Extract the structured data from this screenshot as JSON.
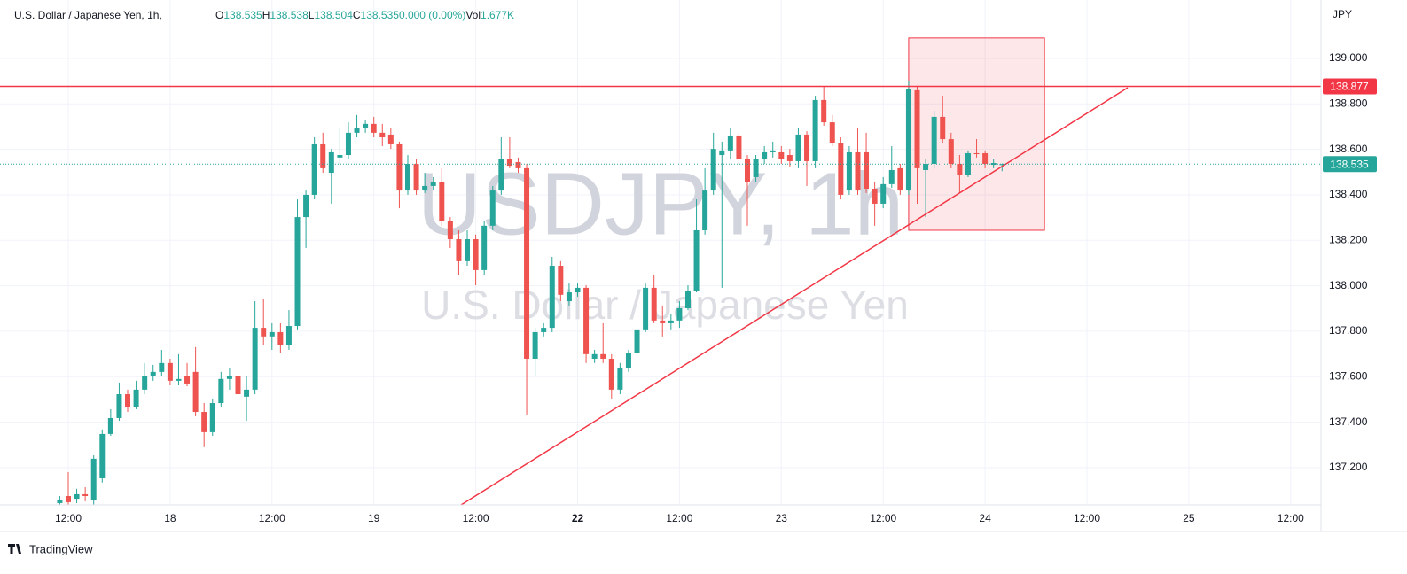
{
  "chart_data": {
    "type": "candlestick",
    "title": "U.S. Dollar / Japanese Yen, 1h,",
    "legend_items": [
      {
        "key": "O",
        "value": "138.535"
      },
      {
        "key": "H",
        "value": "138.538"
      },
      {
        "key": "L",
        "value": "138.504"
      },
      {
        "key": "C",
        "value": "138.535"
      },
      {
        "key": "",
        "value": "0.000 (0.00%)"
      },
      {
        "key": "Vol",
        "value": "1.677K"
      }
    ],
    "watermark": {
      "symbol": "USDJPY, 1h",
      "description": "U.S. Dollar / Japanese Yen"
    },
    "currency": "JPY",
    "brand": "TradingView",
    "up_color": "#26a69a",
    "down_color": "#ef5350",
    "grid": true,
    "xlim": [
      3.96,
      159.57
    ],
    "ylim": [
      137.036,
      139.257
    ],
    "xticks": [
      {
        "value": 12,
        "label": "12:00"
      },
      {
        "value": 24,
        "label": "18"
      },
      {
        "value": 36,
        "label": "12:00"
      },
      {
        "value": 48,
        "label": "19"
      },
      {
        "value": 60,
        "label": "12:00"
      },
      {
        "value": 72,
        "label": "22"
      },
      {
        "value": 84,
        "label": "12:00"
      },
      {
        "value": 96,
        "label": "23"
      },
      {
        "value": 108,
        "label": "12:00"
      },
      {
        "value": 120,
        "label": "24"
      },
      {
        "value": 132,
        "label": "12:00"
      },
      {
        "value": 144,
        "label": "25"
      },
      {
        "value": 156,
        "label": "12:00"
      }
    ],
    "yticks": [
      {
        "value": 137.2,
        "label": "137.200"
      },
      {
        "value": 137.4,
        "label": "137.400"
      },
      {
        "value": 137.6,
        "label": "137.600"
      },
      {
        "value": 137.8,
        "label": "137.800"
      },
      {
        "value": 138.0,
        "label": "138.000"
      },
      {
        "value": 138.2,
        "label": "138.200"
      },
      {
        "value": 138.4,
        "label": "138.400"
      },
      {
        "value": 138.6,
        "label": "138.600"
      },
      {
        "value": 138.8,
        "label": "138.800"
      },
      {
        "value": 139.0,
        "label": "139.000"
      }
    ],
    "x": [
      11,
      12,
      13,
      14,
      15,
      16,
      17,
      18,
      19,
      20,
      21,
      22,
      23,
      24,
      25,
      26,
      27,
      28,
      29,
      30,
      31,
      32,
      33,
      34,
      35,
      36,
      37,
      38,
      39,
      40,
      41,
      42,
      43,
      44,
      45,
      46,
      47,
      48,
      49,
      50,
      51,
      52,
      53,
      54,
      55,
      56,
      57,
      58,
      59,
      60,
      61,
      62,
      63,
      64,
      65,
      66,
      67,
      68,
      69,
      70,
      71,
      72,
      73,
      74,
      75,
      76,
      77,
      78,
      79,
      80,
      81,
      82,
      83,
      84,
      85,
      86,
      87,
      88,
      89,
      90,
      91,
      92,
      93,
      94,
      95,
      96,
      97,
      98,
      99,
      100,
      101,
      102,
      103,
      104,
      105,
      106,
      107,
      108,
      109,
      110,
      111,
      112,
      113,
      114,
      115,
      116,
      117,
      118,
      119,
      120,
      121,
      122
    ],
    "open": [
      137.044,
      137.075,
      137.063,
      137.083,
      137.056,
      137.153,
      137.348,
      137.418,
      137.523,
      137.465,
      137.543,
      137.601,
      137.621,
      137.66,
      137.582,
      137.601,
      137.621,
      137.445,
      137.356,
      137.484,
      137.59,
      137.601,
      137.512,
      137.543,
      137.815,
      137.777,
      137.796,
      137.738,
      137.823,
      138.302,
      138.4,
      138.622,
      138.497,
      138.564,
      138.575,
      138.673,
      138.692,
      138.712,
      138.673,
      138.665,
      138.622,
      138.419,
      138.536,
      138.419,
      138.439,
      138.458,
      138.283,
      138.205,
      138.108,
      138.205,
      138.069,
      138.264,
      138.419,
      138.556,
      138.544,
      138.517,
      137.679,
      137.796,
      137.815,
      138.088,
      137.932,
      137.971,
      137.991,
      137.679,
      137.699,
      137.679,
      137.543,
      137.64,
      137.706,
      137.808,
      137.991,
      137.847,
      137.835,
      137.847,
      137.901,
      137.979,
      138.244,
      138.419,
      138.575,
      138.595,
      138.661,
      138.556,
      138.478,
      138.556,
      138.587,
      138.587,
      138.575,
      138.548,
      138.665,
      138.548,
      138.817,
      138.719,
      138.626,
      138.419,
      138.587,
      138.587,
      138.427,
      138.361,
      138.447,
      138.517,
      138.419,
      138.86,
      138.509,
      138.536,
      138.743,
      138.645,
      138.536,
      138.489,
      138.583,
      138.583,
      138.532,
      138.535
    ],
    "high": [
      137.075,
      137.18,
      137.107,
      137.114,
      137.254,
      137.368,
      137.457,
      137.574,
      137.543,
      137.582,
      137.66,
      137.652,
      137.718,
      137.679,
      137.699,
      137.66,
      137.73,
      137.484,
      137.504,
      137.621,
      137.64,
      137.73,
      137.601,
      137.932,
      137.94,
      137.835,
      137.835,
      137.893,
      138.38,
      138.419,
      138.653,
      138.673,
      138.602,
      138.692,
      138.719,
      138.751,
      138.731,
      138.743,
      138.712,
      138.692,
      138.634,
      138.575,
      138.556,
      138.497,
      138.478,
      138.517,
      138.302,
      138.244,
      138.244,
      138.225,
      138.283,
      138.439,
      138.653,
      138.653,
      138.564,
      138.536,
      137.815,
      137.835,
      138.127,
      138.108,
      138.01,
      138.01,
      138.002,
      137.718,
      137.835,
      137.699,
      137.66,
      137.718,
      137.823,
      138.01,
      138.049,
      137.913,
      137.874,
      137.932,
      138.002,
      138.38,
      138.517,
      138.673,
      138.634,
      138.692,
      138.673,
      138.575,
      138.575,
      138.614,
      138.634,
      138.614,
      138.602,
      138.692,
      138.68,
      138.836,
      138.879,
      138.751,
      138.653,
      138.614,
      138.692,
      138.673,
      138.458,
      138.478,
      138.614,
      138.536,
      138.899,
      138.879,
      138.556,
      138.77,
      138.836,
      138.673,
      138.575,
      138.595,
      138.645,
      138.595,
      138.556,
      138.538
    ],
    "low": [
      137.036,
      137.036,
      137.044,
      137.052,
      137.036,
      137.134,
      137.34,
      137.406,
      137.445,
      137.457,
      137.523,
      137.582,
      137.601,
      137.562,
      137.562,
      137.558,
      137.426,
      137.29,
      137.34,
      137.465,
      137.543,
      137.504,
      137.406,
      137.523,
      137.738,
      137.718,
      137.706,
      137.718,
      137.808,
      138.166,
      138.38,
      138.497,
      138.361,
      138.536,
      138.556,
      138.653,
      138.673,
      138.653,
      138.614,
      138.602,
      138.341,
      138.4,
      138.4,
      138.408,
      138.419,
      138.264,
      138.166,
      138.049,
      138.088,
      138.002,
      138.049,
      138.244,
      138.4,
      138.517,
      138.497,
      137.434,
      137.601,
      137.777,
      137.796,
      137.932,
      137.913,
      137.952,
      137.66,
      137.66,
      137.66,
      137.504,
      137.523,
      137.621,
      137.699,
      137.796,
      137.835,
      137.777,
      137.808,
      137.815,
      137.893,
      137.971,
      138.225,
      138.4,
      137.991,
      138.556,
      138.536,
      138.264,
      138.458,
      138.536,
      138.564,
      138.536,
      138.525,
      138.517,
      138.439,
      138.517,
      138.704,
      138.614,
      138.38,
      138.4,
      138.4,
      138.408,
      138.264,
      138.341,
      138.431,
      138.4,
      138.4,
      138.361,
      138.302,
      138.517,
      138.626,
      138.517,
      138.408,
      138.478,
      138.564,
      138.517,
      138.517,
      138.504
    ],
    "close": [
      137.056,
      137.048,
      137.083,
      137.075,
      137.239,
      137.348,
      137.418,
      137.523,
      137.465,
      137.543,
      137.601,
      137.621,
      137.66,
      137.582,
      137.59,
      137.57,
      137.445,
      137.356,
      137.484,
      137.59,
      137.601,
      137.523,
      137.543,
      137.815,
      137.777,
      137.796,
      137.738,
      137.823,
      138.302,
      138.4,
      138.622,
      138.517,
      138.587,
      138.575,
      138.673,
      138.692,
      138.712,
      138.673,
      138.653,
      138.622,
      138.419,
      138.536,
      138.419,
      138.439,
      138.458,
      138.283,
      138.205,
      138.108,
      138.205,
      138.069,
      138.264,
      138.419,
      138.556,
      138.528,
      138.517,
      137.679,
      137.796,
      137.815,
      138.088,
      137.96,
      137.971,
      137.991,
      137.699,
      137.699,
      137.679,
      137.543,
      137.64,
      137.706,
      137.808,
      137.991,
      137.847,
      137.835,
      137.847,
      137.901,
      137.979,
      138.244,
      138.419,
      138.602,
      138.595,
      138.661,
      138.556,
      138.458,
      138.556,
      138.587,
      138.595,
      138.556,
      138.548,
      138.665,
      138.548,
      138.817,
      138.719,
      138.626,
      138.4,
      138.587,
      138.419,
      138.427,
      138.361,
      138.447,
      138.509,
      138.419,
      138.867,
      138.517,
      138.536,
      138.743,
      138.645,
      138.536,
      138.489,
      138.583,
      138.579,
      138.536,
      138.54,
      138.535
    ],
    "hline": {
      "value": 138.877,
      "label": "138.877",
      "color": "#f23645"
    },
    "last_price": {
      "value": 138.535,
      "label": "138.535"
    },
    "rectangle": {
      "x": [
        111,
        127
      ],
      "y": [
        138.244,
        139.09
      ],
      "color": "#f23645"
    },
    "trendline": {
      "x": [
        58.27,
        136.8
      ],
      "y": [
        137.036,
        138.871
      ],
      "color": "#f23645"
    }
  }
}
